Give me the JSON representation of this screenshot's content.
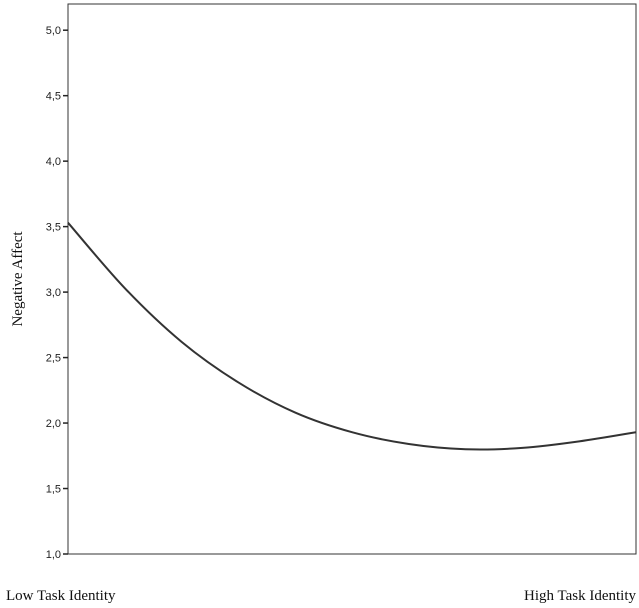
{
  "chart_data": {
    "type": "line",
    "ylabel": "Negative Affect",
    "xlabel": "",
    "ylim": [
      1.0,
      5.2
    ],
    "yticks": [
      "1,0",
      "1,5",
      "2,0",
      "2,5",
      "3,0",
      "3,5",
      "4,0",
      "4,5",
      "5,0"
    ],
    "categories": [
      "Low Task Identity",
      "High Task Identity"
    ],
    "x": [
      0,
      0.1,
      0.2,
      0.3,
      0.4,
      0.5,
      0.6,
      0.7,
      0.8,
      0.9,
      1.0
    ],
    "series": [
      {
        "values": [
          3.53,
          3.03,
          2.62,
          2.31,
          2.08,
          1.93,
          1.84,
          1.8,
          1.81,
          1.86,
          1.93
        ]
      }
    ],
    "grid": false,
    "line_color": "#333333"
  }
}
